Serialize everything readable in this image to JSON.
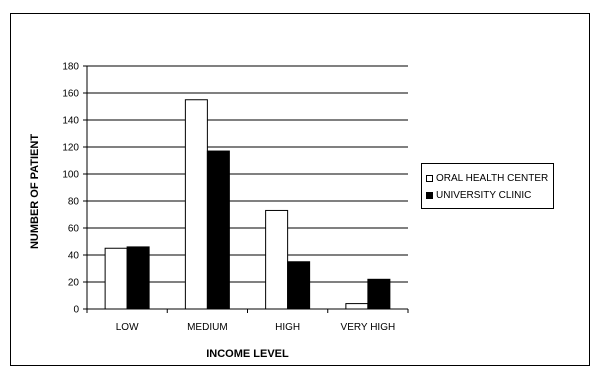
{
  "colors": {
    "background": "#ffffff",
    "oral_health_center": "#ffffff",
    "university_clinic": "#000000",
    "axis": "#000000"
  },
  "chart_data": {
    "type": "bar",
    "title": "",
    "xlabel": "INCOME LEVEL",
    "ylabel": "NUMBER OF PATIENT",
    "categories": [
      "LOW",
      "MEDIUM",
      "HIGH",
      "VERY HIGH"
    ],
    "series": [
      {
        "name": "ORAL HEALTH CENTER",
        "color": "#ffffff",
        "values": [
          45,
          155,
          73,
          4
        ]
      },
      {
        "name": "UNIVERSITY CLINIC",
        "color": "#000000",
        "values": [
          46,
          117,
          35,
          22
        ]
      }
    ],
    "ylim": [
      0,
      180
    ],
    "yticks": [
      "0",
      "20",
      "40",
      "60",
      "80",
      "100",
      "120",
      "140",
      "160",
      "180"
    ],
    "grid": true,
    "legend_position": "right"
  }
}
